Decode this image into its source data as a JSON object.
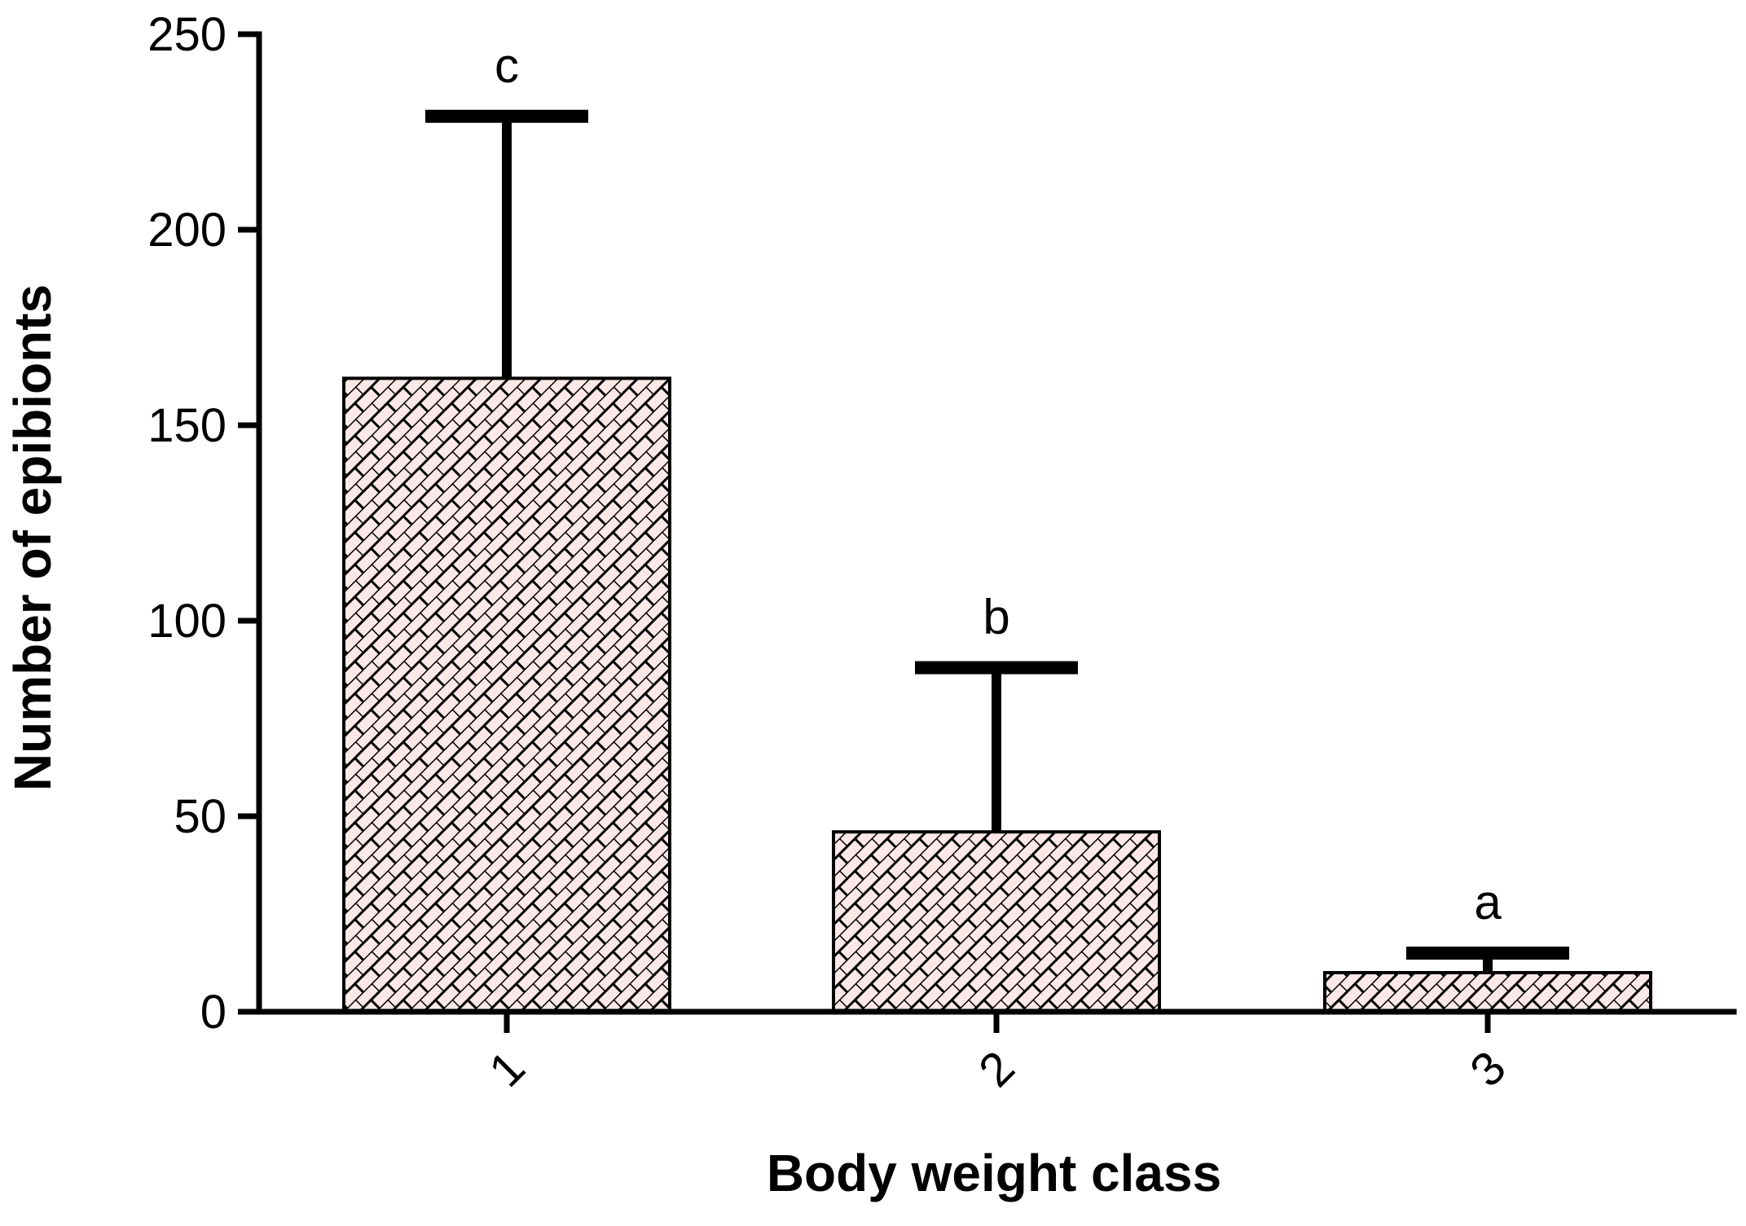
{
  "chart_data": {
    "type": "bar",
    "categories": [
      "1",
      "2",
      "3"
    ],
    "values": [
      162,
      46,
      10
    ],
    "error_upper": [
      229,
      88,
      15
    ],
    "annotations": [
      "c",
      "b",
      "a"
    ],
    "xlabel": "Body weight class",
    "ylabel": "Number of epibionts",
    "ylim": [
      0,
      250
    ],
    "yticks": [
      "0",
      "50",
      "100",
      "150",
      "200",
      "250"
    ],
    "ytick_values": [
      0,
      50,
      100,
      150,
      200,
      250
    ],
    "grid": false,
    "bar_fill": "#fde8e8",
    "bar_pattern": "brick-hatch",
    "xtick_rotation": "-45deg"
  }
}
